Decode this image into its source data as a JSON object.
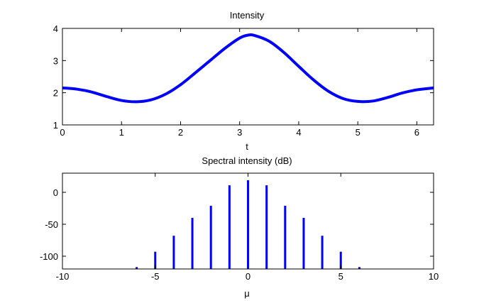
{
  "chart_data": [
    {
      "type": "line",
      "title": "Intensity",
      "xlabel": "t",
      "ylabel": "",
      "xlim": [
        0,
        6.2832
      ],
      "ylim": [
        1,
        4
      ],
      "xticks": [
        "0",
        "1",
        "2",
        "3",
        "4",
        "5",
        "6"
      ],
      "yticks": [
        "1",
        "2",
        "3",
        "4"
      ],
      "grid": false,
      "line_color": "#0000ff",
      "series": [
        {
          "x": [
            0,
            0.25,
            0.5,
            0.75,
            1.0,
            1.25,
            1.5,
            1.75,
            2.0,
            2.25,
            2.5,
            2.75,
            3.0,
            3.14,
            3.25,
            3.5,
            3.75,
            4.0,
            4.25,
            4.5,
            4.75,
            5.0,
            5.25,
            5.5,
            5.75,
            6.0,
            6.2832
          ],
          "y": [
            2.15,
            2.11,
            2.02,
            1.88,
            1.76,
            1.72,
            1.78,
            1.96,
            2.25,
            2.62,
            3.0,
            3.38,
            3.7,
            3.79,
            3.78,
            3.6,
            3.25,
            2.82,
            2.4,
            2.05,
            1.82,
            1.73,
            1.74,
            1.85,
            1.99,
            2.09,
            2.15
          ]
        }
      ]
    },
    {
      "type": "bar",
      "title": "Spectral intensity (dB)",
      "xlabel": "μ",
      "ylabel": "",
      "xlim": [
        -10,
        10
      ],
      "ylim": [
        -120,
        30
      ],
      "xticks": [
        "-10",
        "-5",
        "0",
        "5",
        "10"
      ],
      "yticks": [
        "0",
        "-50",
        "-100"
      ],
      "grid": false,
      "bar_color": "#0000ff",
      "categories": [
        -6,
        -5,
        -4,
        -3,
        -2,
        -1,
        0,
        1,
        2,
        3,
        4,
        5,
        6
      ],
      "values": [
        -117,
        -93,
        -68,
        -40,
        -21,
        11,
        19,
        11,
        -21,
        -40,
        -68,
        -93,
        -117
      ]
    }
  ]
}
